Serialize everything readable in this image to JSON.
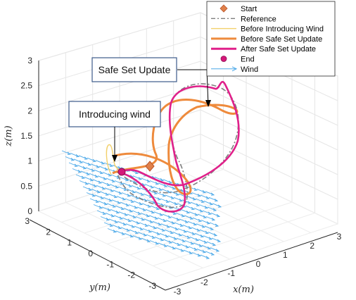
{
  "chart_data": {
    "type": "line",
    "title": "",
    "xlabel": "x(m)",
    "ylabel": "y(m)",
    "zlabel": "z(m)",
    "xticks": [
      "-3",
      "-2",
      "-1",
      "0",
      "1",
      "2",
      "3"
    ],
    "yticks": [
      "-3",
      "-2",
      "-1",
      "0",
      "1",
      "2",
      "3"
    ],
    "zticks": [
      "0",
      "0.5",
      "1",
      "1.5",
      "2",
      "2.5",
      "3"
    ],
    "xlim": [
      -3,
      3
    ],
    "ylim": [
      -3,
      3
    ],
    "zlim": [
      0,
      3
    ],
    "grid": true,
    "legend_position": "top-right",
    "series": [
      {
        "name": "Start",
        "color": "#E0804A",
        "marker": "diamond"
      },
      {
        "name": "Reference",
        "color": "#7F7F7F",
        "style": "dash-dot"
      },
      {
        "name": "Before Introducing Wind",
        "color": "#F2D06B",
        "style": "solid-thin"
      },
      {
        "name": "Before Safe Set Update",
        "color": "#EE8A3C",
        "style": "solid-thick"
      },
      {
        "name": "After Safe Set Update",
        "color": "#E0208A",
        "style": "solid-thick"
      },
      {
        "name": "End",
        "color": "#D4187A",
        "marker": "circle"
      },
      {
        "name": "Wind",
        "color": "#4AA8E8",
        "marker": "arrow"
      }
    ],
    "annotations": [
      {
        "text": "Safe Set Update"
      },
      {
        "text": "Introducing wind"
      }
    ]
  }
}
